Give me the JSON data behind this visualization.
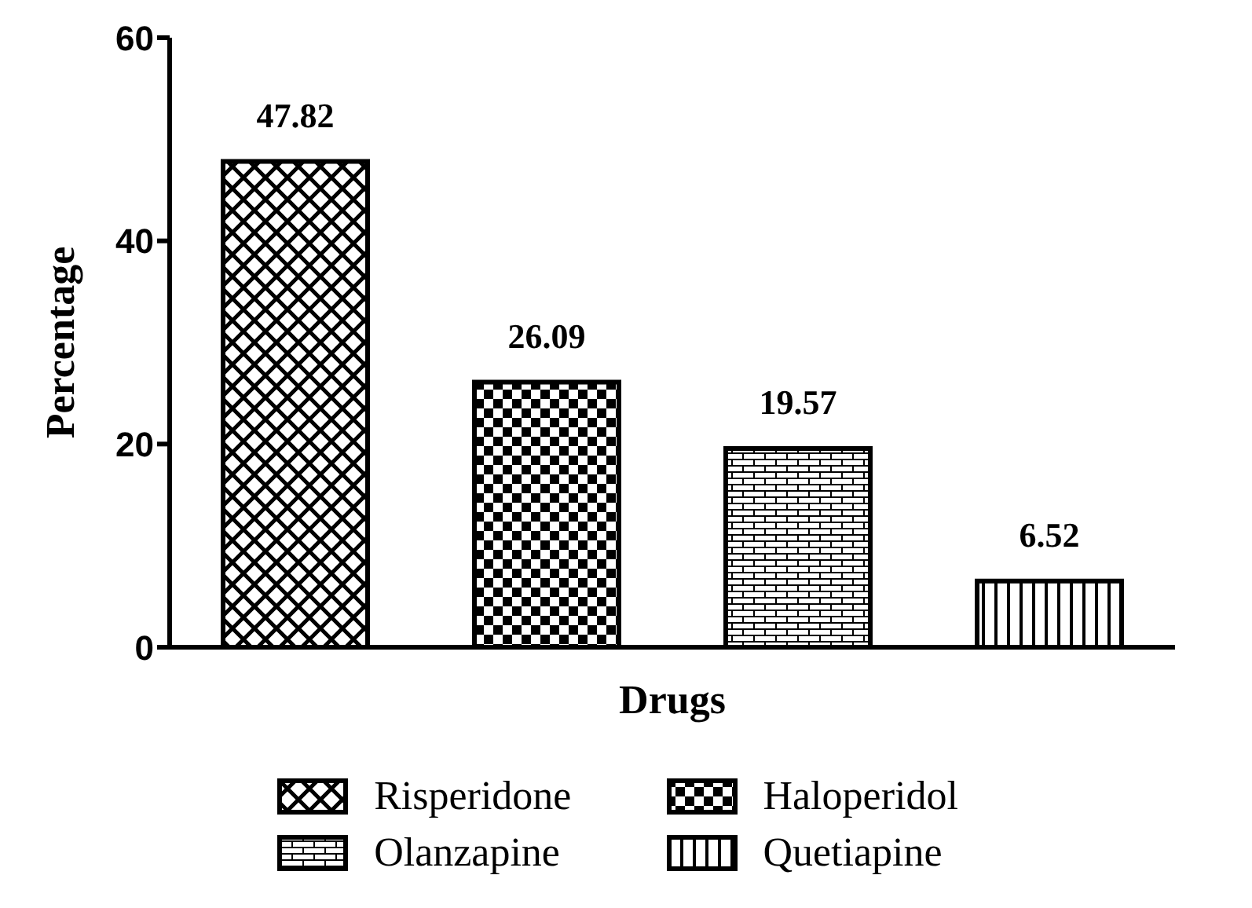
{
  "chart_data": {
    "type": "bar",
    "xlabel": "Drugs",
    "ylabel": "Percentage",
    "categories": [
      null,
      null,
      null,
      null
    ],
    "series": [
      {
        "name": "Risperidone",
        "color": "#000000",
        "values": [
          47.82,
          null,
          null,
          null
        ]
      },
      {
        "name": "Haloperidol",
        "color": "#000000",
        "values": [
          null,
          26.09,
          null,
          null
        ]
      },
      {
        "name": "Olanzapine",
        "color": "#000000",
        "values": [
          null,
          null,
          19.57,
          null
        ]
      },
      {
        "name": "Quetiapine",
        "color": "#000000",
        "values": [
          null,
          null,
          null,
          6.52
        ]
      }
    ],
    "ylim": [
      0,
      60
    ],
    "yticks": [
      0,
      20,
      40,
      60
    ],
    "grid": false,
    "legend": "bottom",
    "data_labels": true
  }
}
